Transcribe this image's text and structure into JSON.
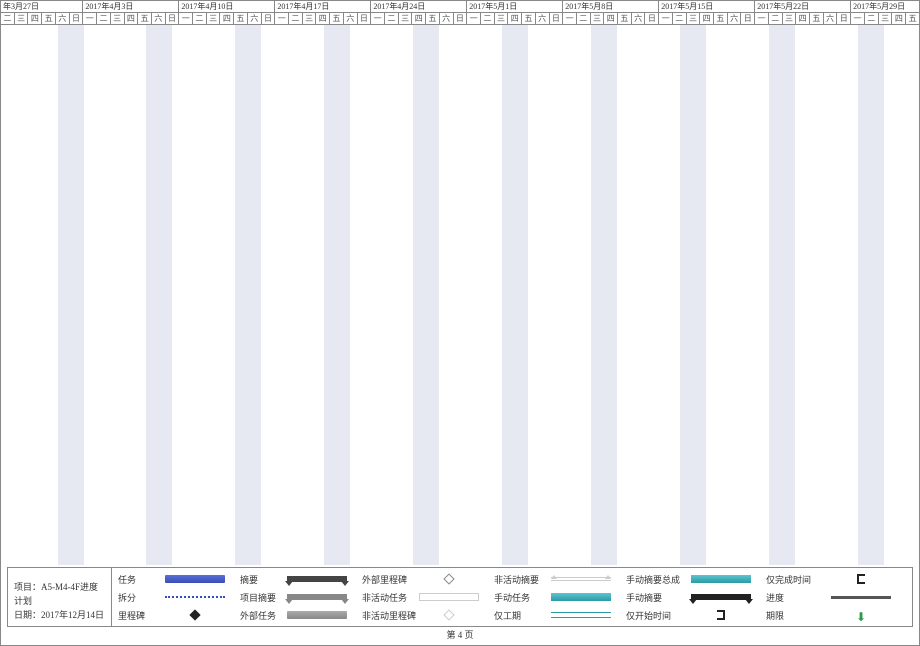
{
  "project": {
    "label": "项目：",
    "name": "A5-M4-4F进度计划",
    "date_label": "日期：",
    "date": "2017年12月14日"
  },
  "page": {
    "label": "第 4 页"
  },
  "weeks": [
    {
      "label": "年3月27日",
      "days": [
        "二",
        "三",
        "四",
        "五",
        "六",
        "日"
      ]
    },
    {
      "label": "2017年4月3日",
      "days": [
        "一",
        "二",
        "三",
        "四",
        "五",
        "六",
        "日"
      ]
    },
    {
      "label": "2017年4月10日",
      "days": [
        "一",
        "二",
        "三",
        "四",
        "五",
        "六",
        "日"
      ]
    },
    {
      "label": "2017年4月17日",
      "days": [
        "一",
        "二",
        "三",
        "四",
        "五",
        "六",
        "日"
      ]
    },
    {
      "label": "2017年4月24日",
      "days": [
        "一",
        "二",
        "三",
        "四",
        "五",
        "六",
        "日"
      ]
    },
    {
      "label": "2017年5月1日",
      "days": [
        "一",
        "二",
        "三",
        "四",
        "五",
        "六",
        "日"
      ]
    },
    {
      "label": "2017年5月8日",
      "days": [
        "一",
        "二",
        "三",
        "四",
        "五",
        "六",
        "日"
      ]
    },
    {
      "label": "2017年5月15日",
      "days": [
        "一",
        "二",
        "三",
        "四",
        "五",
        "六",
        "日"
      ]
    },
    {
      "label": "2017年5月22日",
      "days": [
        "一",
        "二",
        "三",
        "四",
        "五",
        "六",
        "日"
      ]
    },
    {
      "label": "2017年5月29日",
      "days": [
        "一",
        "二",
        "三",
        "四",
        "五"
      ]
    }
  ],
  "legend": {
    "r1c1": "任务",
    "r1c2": "摘要",
    "r1c3": "外部里程碑",
    "r1c4": "非活动摘要",
    "r1c5": "手动摘要总成",
    "r1c6": "仅完成时间",
    "r2c1": "拆分",
    "r2c2": "项目摘要",
    "r2c3": "非活动任务",
    "r2c4": "手动任务",
    "r2c5": "手动摘要",
    "r2c6": "进度",
    "r3c1": "里程碑",
    "r3c2": "外部任务",
    "r3c3": "非活动里程碑",
    "r3c4": "仅工期",
    "r3c5": "仅开始时间",
    "r3c6": "期限"
  },
  "stripes": {
    "count": 10,
    "width_pct": 2.8,
    "offsets_pct": [
      6.2,
      15.8,
      25.5,
      35.2,
      44.9,
      54.6,
      64.3,
      74.0,
      83.7,
      93.4
    ]
  },
  "colors": {
    "weekend": "#e6e9f2",
    "task_bar": "#3a4eb8",
    "manual": "#2a9aa8",
    "border": "#888888"
  }
}
